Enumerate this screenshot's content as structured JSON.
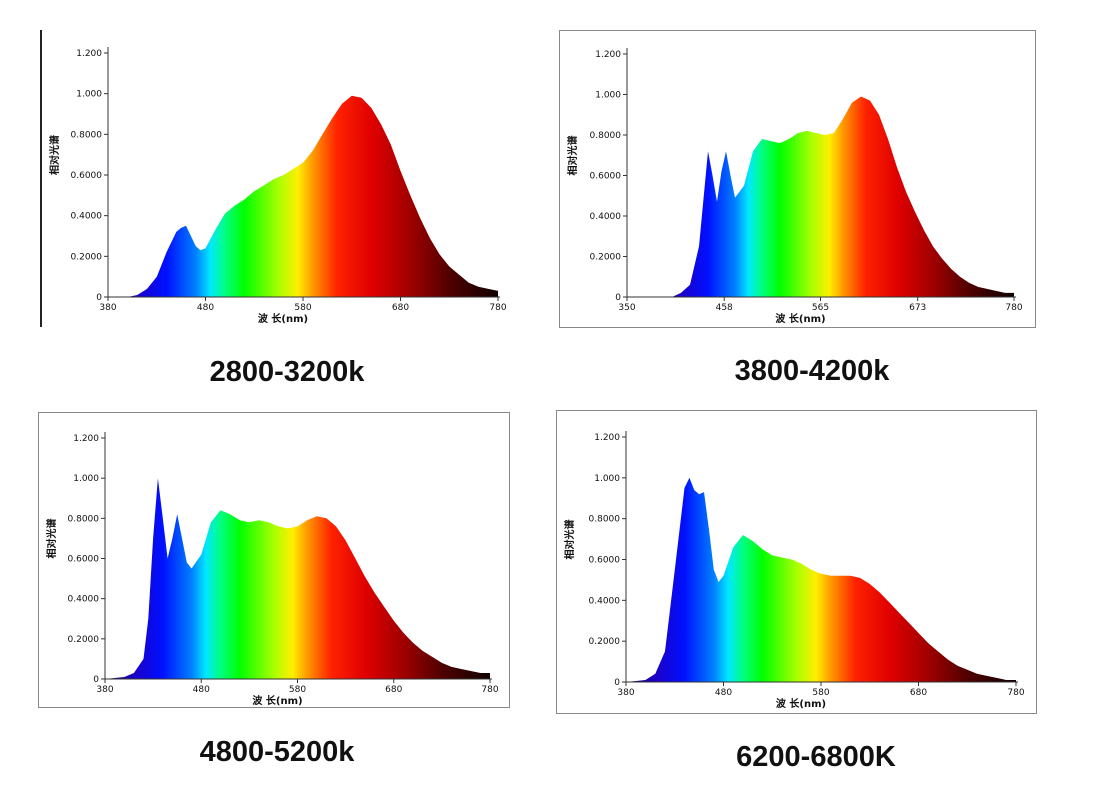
{
  "chart_data": [
    {
      "type": "area",
      "title": "",
      "caption": "2800-3200k",
      "xlabel": "波 长(nm)",
      "ylabel": "相对光谱",
      "xlim": [
        380,
        780
      ],
      "ylim": [
        0,
        1.2
      ],
      "x_ticks": [
        380,
        480,
        580,
        680,
        780
      ],
      "x_tick_labels": [
        "380",
        "480",
        "580",
        "680",
        "780"
      ],
      "y_ticks": [
        0,
        0.2,
        0.4,
        0.6,
        0.8,
        1.0,
        1.2
      ],
      "y_tick_labels": [
        "0",
        "0.2000",
        "0.4000",
        "0.6000",
        "0.8000",
        "1.000",
        "1.200"
      ],
      "series": [
        {
          "name": "2800-3200k",
          "x": [
            380,
            400,
            410,
            420,
            430,
            440,
            450,
            455,
            460,
            465,
            470,
            475,
            480,
            490,
            500,
            510,
            520,
            530,
            540,
            550,
            560,
            570,
            580,
            590,
            600,
            610,
            620,
            630,
            640,
            650,
            660,
            670,
            680,
            690,
            700,
            710,
            720,
            730,
            740,
            750,
            760,
            770,
            780
          ],
          "y": [
            0,
            0,
            0.01,
            0.04,
            0.1,
            0.22,
            0.32,
            0.34,
            0.35,
            0.3,
            0.25,
            0.23,
            0.24,
            0.33,
            0.41,
            0.45,
            0.48,
            0.52,
            0.55,
            0.58,
            0.6,
            0.63,
            0.66,
            0.72,
            0.8,
            0.88,
            0.95,
            0.99,
            0.98,
            0.93,
            0.85,
            0.75,
            0.62,
            0.5,
            0.39,
            0.29,
            0.21,
            0.15,
            0.11,
            0.07,
            0.05,
            0.04,
            0.03
          ]
        }
      ]
    },
    {
      "type": "area",
      "title": "",
      "caption": "3800-4200k",
      "xlabel": "波 长(nm)",
      "ylabel": "相对光谱",
      "xlim": [
        350,
        780
      ],
      "ylim": [
        0,
        1.2
      ],
      "x_ticks": [
        350,
        458,
        565,
        673,
        780
      ],
      "x_tick_labels": [
        "350",
        "458",
        "565",
        "673",
        "780"
      ],
      "y_ticks": [
        0,
        0.2,
        0.4,
        0.6,
        0.8,
        1.0,
        1.2
      ],
      "y_tick_labels": [
        "0",
        "0.2000",
        "0.4000",
        "0.6000",
        "0.8000",
        "1.000",
        "1.200"
      ],
      "series": [
        {
          "name": "3800-4200k",
          "x": [
            350,
            380,
            400,
            410,
            420,
            430,
            440,
            445,
            450,
            455,
            460,
            465,
            470,
            480,
            490,
            500,
            510,
            520,
            530,
            540,
            550,
            560,
            570,
            580,
            590,
            600,
            610,
            620,
            630,
            640,
            650,
            660,
            670,
            680,
            690,
            700,
            710,
            720,
            730,
            740,
            750,
            760,
            770,
            780
          ],
          "y": [
            0,
            0,
            0,
            0.02,
            0.06,
            0.25,
            0.72,
            0.6,
            0.47,
            0.62,
            0.72,
            0.6,
            0.49,
            0.55,
            0.72,
            0.78,
            0.77,
            0.76,
            0.78,
            0.81,
            0.82,
            0.81,
            0.8,
            0.81,
            0.88,
            0.96,
            0.99,
            0.97,
            0.9,
            0.78,
            0.64,
            0.52,
            0.42,
            0.33,
            0.25,
            0.19,
            0.14,
            0.1,
            0.07,
            0.05,
            0.04,
            0.03,
            0.02,
            0.02
          ]
        }
      ]
    },
    {
      "type": "area",
      "title": "",
      "caption": "4800-5200k",
      "xlabel": "波 长(nm)",
      "ylabel": "相对光谱",
      "xlim": [
        380,
        780
      ],
      "ylim": [
        0,
        1.2
      ],
      "x_ticks": [
        380,
        480,
        580,
        680,
        780
      ],
      "x_tick_labels": [
        "380",
        "480",
        "580",
        "680",
        "780"
      ],
      "y_ticks": [
        0,
        0.2,
        0.4,
        0.6,
        0.8,
        1.0,
        1.2
      ],
      "y_tick_labels": [
        "0",
        "0.2000",
        "0.4000",
        "0.6000",
        "0.8000",
        "1.000",
        "1.200"
      ],
      "series": [
        {
          "name": "4800-5200k",
          "x": [
            380,
            400,
            410,
            420,
            425,
            430,
            435,
            440,
            445,
            450,
            455,
            460,
            465,
            470,
            480,
            490,
            500,
            510,
            520,
            530,
            540,
            550,
            560,
            570,
            580,
            590,
            600,
            610,
            620,
            630,
            640,
            650,
            660,
            670,
            680,
            690,
            700,
            710,
            720,
            730,
            740,
            750,
            760,
            770,
            780
          ],
          "y": [
            0,
            0.01,
            0.03,
            0.1,
            0.3,
            0.7,
            1.0,
            0.8,
            0.6,
            0.7,
            0.82,
            0.7,
            0.58,
            0.55,
            0.62,
            0.78,
            0.84,
            0.82,
            0.79,
            0.78,
            0.79,
            0.78,
            0.76,
            0.75,
            0.76,
            0.79,
            0.81,
            0.8,
            0.76,
            0.69,
            0.6,
            0.51,
            0.43,
            0.36,
            0.29,
            0.23,
            0.18,
            0.14,
            0.11,
            0.08,
            0.06,
            0.05,
            0.04,
            0.03,
            0.03
          ]
        }
      ]
    },
    {
      "type": "area",
      "title": "",
      "caption": "6200-6800K",
      "xlabel": "波 长(nm)",
      "ylabel": "相对光谱",
      "xlim": [
        380,
        780
      ],
      "ylim": [
        0,
        1.2
      ],
      "x_ticks": [
        380,
        480,
        580,
        680,
        780
      ],
      "x_tick_labels": [
        "380",
        "480",
        "580",
        "680",
        "780"
      ],
      "y_ticks": [
        0,
        0.2,
        0.4,
        0.6,
        0.8,
        1.0,
        1.2
      ],
      "y_tick_labels": [
        "0",
        "0.2000",
        "0.4000",
        "0.6000",
        "0.8000",
        "1.000",
        "1.200"
      ],
      "series": [
        {
          "name": "6200-6800K",
          "x": [
            380,
            400,
            410,
            420,
            430,
            440,
            445,
            450,
            455,
            460,
            465,
            470,
            475,
            480,
            490,
            500,
            510,
            520,
            530,
            540,
            550,
            560,
            570,
            580,
            590,
            600,
            610,
            620,
            630,
            640,
            650,
            660,
            670,
            680,
            690,
            700,
            710,
            720,
            730,
            740,
            750,
            760,
            770,
            780
          ],
          "y": [
            0,
            0.01,
            0.04,
            0.15,
            0.55,
            0.95,
            1.0,
            0.94,
            0.92,
            0.93,
            0.75,
            0.55,
            0.49,
            0.52,
            0.66,
            0.72,
            0.69,
            0.65,
            0.62,
            0.61,
            0.6,
            0.58,
            0.55,
            0.53,
            0.52,
            0.52,
            0.52,
            0.51,
            0.48,
            0.44,
            0.39,
            0.34,
            0.29,
            0.24,
            0.19,
            0.15,
            0.11,
            0.08,
            0.06,
            0.04,
            0.03,
            0.02,
            0.01,
            0.01
          ]
        }
      ]
    }
  ]
}
